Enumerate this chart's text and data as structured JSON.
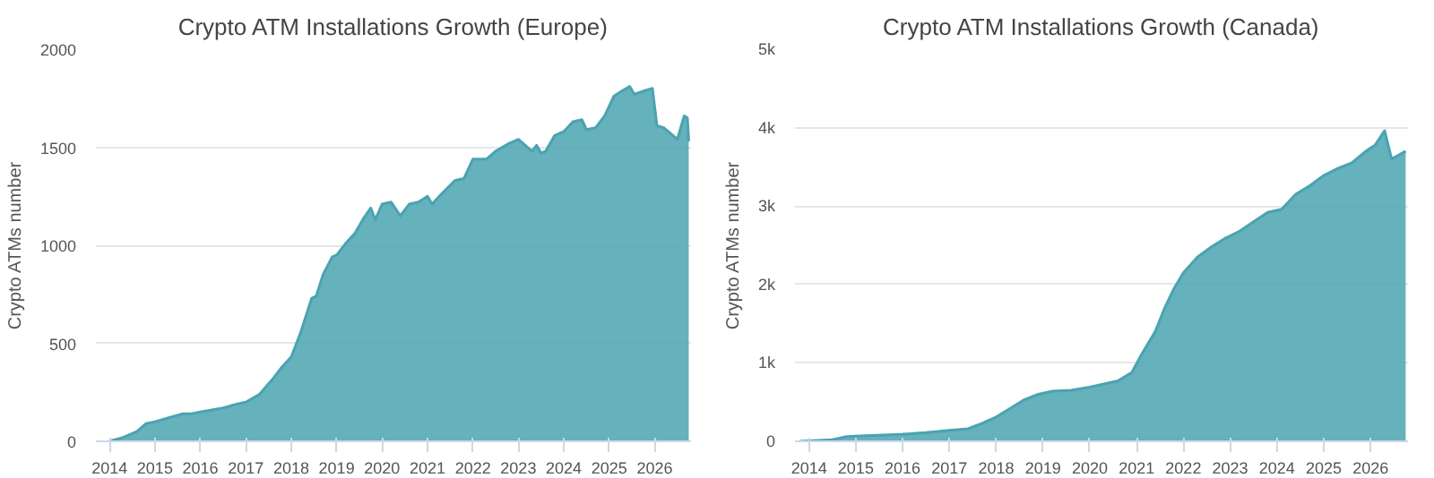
{
  "chart_data": [
    {
      "type": "area",
      "title": "Crypto ATM Installations Growth (Europe)",
      "ylabel": "Crypto ATMs number",
      "grid": "y",
      "xlim": [
        2013.7,
        2026.8
      ],
      "xticks": [
        2014,
        2015,
        2016,
        2017,
        2018,
        2019,
        2020,
        2021,
        2022,
        2023,
        2024,
        2025,
        2026
      ],
      "ylim": [
        0,
        2000
      ],
      "yticks": [
        0,
        500,
        1000,
        1500,
        2000
      ],
      "series": [
        {
          "color": "#4aa3b0",
          "x": [
            2014.0,
            2014.3,
            2014.6,
            2014.8,
            2015.0,
            2015.3,
            2015.6,
            2015.8,
            2016.0,
            2016.5,
            2016.8,
            2017.0,
            2017.3,
            2017.6,
            2017.8,
            2018.0,
            2018.2,
            2018.45,
            2018.55,
            2018.7,
            2018.9,
            2019.0,
            2019.2,
            2019.4,
            2019.6,
            2019.75,
            2019.85,
            2020.0,
            2020.2,
            2020.4,
            2020.6,
            2020.8,
            2021.0,
            2021.1,
            2021.3,
            2021.6,
            2021.8,
            2022.0,
            2022.3,
            2022.5,
            2022.8,
            2023.0,
            2023.3,
            2023.4,
            2023.5,
            2023.6,
            2023.8,
            2024.0,
            2024.2,
            2024.4,
            2024.5,
            2024.7,
            2024.9,
            2025.1,
            2025.3,
            2025.45,
            2025.55,
            2025.8,
            2025.95,
            2026.05,
            2026.2,
            2026.5,
            2026.65,
            2026.72,
            2026.75
          ],
          "values": [
            0,
            20,
            50,
            90,
            100,
            120,
            140,
            140,
            150,
            170,
            190,
            200,
            240,
            320,
            380,
            430,
            550,
            730,
            740,
            850,
            940,
            950,
            1010,
            1060,
            1140,
            1190,
            1130,
            1210,
            1220,
            1150,
            1210,
            1220,
            1250,
            1210,
            1260,
            1330,
            1340,
            1440,
            1440,
            1480,
            1520,
            1540,
            1480,
            1510,
            1470,
            1480,
            1560,
            1580,
            1630,
            1640,
            1590,
            1600,
            1660,
            1760,
            1790,
            1810,
            1770,
            1790,
            1800,
            1610,
            1600,
            1540,
            1660,
            1650,
            1530
          ]
        }
      ]
    },
    {
      "type": "area",
      "title": "Crypto ATM Installations Growth (Canada)",
      "ylabel": "Crypto ATMs number",
      "grid": "y",
      "xlim": [
        2013.7,
        2026.8
      ],
      "xticks": [
        2014,
        2015,
        2016,
        2017,
        2018,
        2019,
        2020,
        2021,
        2022,
        2023,
        2024,
        2025,
        2026
      ],
      "ylim": [
        0,
        5000
      ],
      "yticks": [
        0,
        {
          "value": 1000,
          "label": "1k"
        },
        {
          "value": 2000,
          "label": "2k"
        },
        {
          "value": 3000,
          "label": "3k"
        },
        {
          "value": 4000,
          "label": "4k"
        },
        {
          "value": 5000,
          "label": "5k"
        }
      ],
      "series": [
        {
          "color": "#4aa3b0",
          "x": [
            2013.8,
            2014.5,
            2014.8,
            2015.2,
            2015.6,
            2016.0,
            2016.5,
            2017.0,
            2017.4,
            2017.7,
            2018.0,
            2018.3,
            2018.6,
            2018.9,
            2019.2,
            2019.6,
            2020.0,
            2020.3,
            2020.6,
            2020.9,
            2021.1,
            2021.4,
            2021.6,
            2021.8,
            2022.0,
            2022.3,
            2022.6,
            2022.9,
            2023.2,
            2023.5,
            2023.8,
            2024.1,
            2024.4,
            2024.7,
            2025.0,
            2025.3,
            2025.6,
            2025.9,
            2026.1,
            2026.3,
            2026.45,
            2026.6,
            2026.75
          ],
          "values": [
            0,
            20,
            60,
            70,
            80,
            90,
            110,
            140,
            160,
            230,
            310,
            420,
            530,
            600,
            640,
            650,
            690,
            730,
            770,
            880,
            1100,
            1400,
            1700,
            1950,
            2150,
            2350,
            2480,
            2590,
            2680,
            2800,
            2920,
            2960,
            3150,
            3260,
            3390,
            3480,
            3550,
            3700,
            3780,
            3960,
            3600,
            3650,
            3700
          ]
        }
      ]
    }
  ]
}
